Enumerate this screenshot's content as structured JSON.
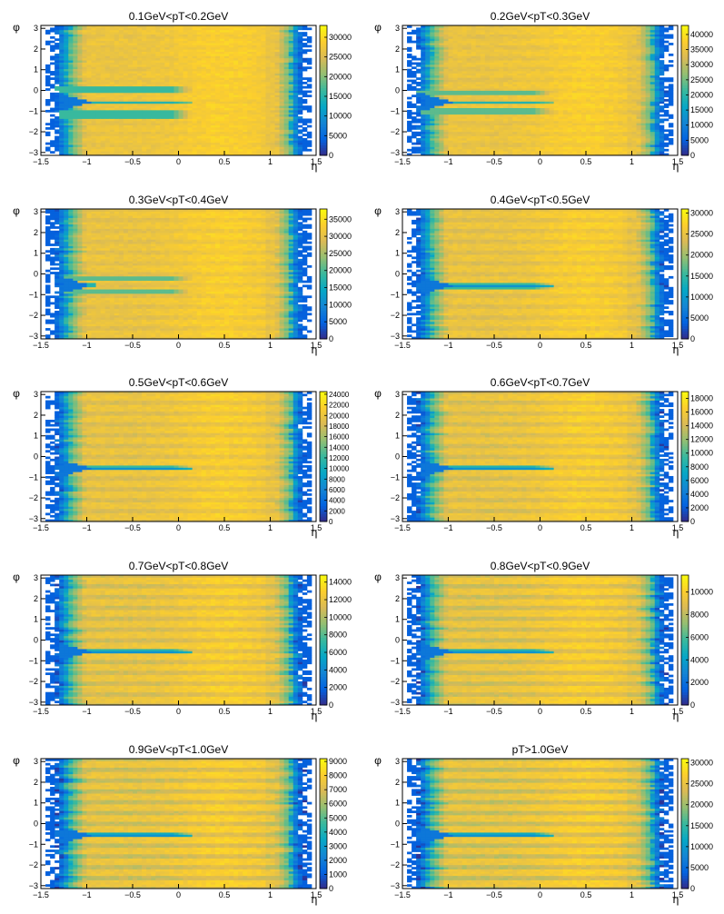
{
  "figure": {
    "colors": {
      "background": "#ffffff",
      "palette": [
        "#352a87",
        "#0363e1",
        "#1485d4",
        "#06a7c6",
        "#38b99e",
        "#92bf73",
        "#d9ba56",
        "#fcce2e",
        "#f9fb0e"
      ],
      "empty": "#ffffff"
    }
  },
  "chart_data": [
    {
      "type": "heatmap",
      "title": "0.1GeV<pT<0.2GeV",
      "xlabel": "η",
      "ylabel": "φ",
      "xlim": [
        -1.5,
        1.5
      ],
      "ylim": [
        -3.14,
        3.14
      ],
      "x_ticks": [
        "−1.5",
        "−1",
        "−0.5",
        "0",
        "0.5",
        "1",
        "1.5"
      ],
      "y_ticks": [
        "−3",
        "−2",
        "−1",
        "0",
        "1",
        "2",
        "3"
      ],
      "z_ticks": [
        "0",
        "5000",
        "10000",
        "15000",
        "20000",
        "25000",
        "30000"
      ],
      "zmax": 33000,
      "features": {
        "stripes": 0.04,
        "band_phi": [
          -1.15,
          0.05
        ],
        "band_eta_max": 0.05,
        "band_width": 0.32,
        "band_level": 0.5,
        "line_level": 0.45
      }
    },
    {
      "type": "heatmap",
      "title": "0.2GeV<pT<0.3GeV",
      "xlabel": "η",
      "ylabel": "φ",
      "xlim": [
        -1.5,
        1.5
      ],
      "ylim": [
        -3.14,
        3.14
      ],
      "x_ticks": [
        "−1.5",
        "−1",
        "−0.5",
        "0",
        "0.5",
        "1",
        "1.5"
      ],
      "y_ticks": [
        "−3",
        "−2",
        "−1",
        "0",
        "1",
        "2",
        "3"
      ],
      "z_ticks": [
        "0",
        "5000",
        "10000",
        "15000",
        "20000",
        "25000",
        "30000",
        "35000",
        "40000"
      ],
      "zmax": 43000,
      "features": {
        "stripes": 0.06,
        "band_phi": [
          -1.0,
          -0.1
        ],
        "band_eta_max": 0.05,
        "band_width": 0.25,
        "band_level": 0.55,
        "line_level": 0.45
      }
    },
    {
      "type": "heatmap",
      "title": "0.3GeV<pT<0.4GeV",
      "xlabel": "η",
      "ylabel": "φ",
      "xlim": [
        -1.5,
        1.5
      ],
      "ylim": [
        -3.14,
        3.14
      ],
      "x_ticks": [
        "−1.5",
        "−1",
        "−0.5",
        "0",
        "0.5",
        "1",
        "1.5"
      ],
      "y_ticks": [
        "−3",
        "−2",
        "−1",
        "0",
        "1",
        "2",
        "3"
      ],
      "z_ticks": [
        "0",
        "5000",
        "10000",
        "15000",
        "20000",
        "25000",
        "30000",
        "35000"
      ],
      "zmax": 38000,
      "features": {
        "stripes": 0.08,
        "band_phi": [
          -0.85,
          -0.2
        ],
        "band_eta_max": 0.05,
        "band_width": 0.22,
        "band_level": 0.55,
        "line_level": 0.45
      }
    },
    {
      "type": "heatmap",
      "title": "0.4GeV<pT<0.5GeV",
      "xlabel": "η",
      "ylabel": "φ",
      "xlim": [
        -1.5,
        1.5
      ],
      "ylim": [
        -3.14,
        3.14
      ],
      "x_ticks": [
        "−1.5",
        "−1",
        "−0.5",
        "0",
        "0.5",
        "1",
        "1.5"
      ],
      "y_ticks": [
        "−3",
        "−2",
        "−1",
        "0",
        "1",
        "2",
        "3"
      ],
      "z_ticks": [
        "0",
        "5000",
        "10000",
        "15000",
        "20000",
        "25000",
        "30000"
      ],
      "zmax": 31000,
      "features": {
        "stripes": 0.1,
        "band_phi": [
          -0.55,
          -0.55
        ],
        "band_eta_max": 0.05,
        "band_width": 0.32,
        "band_level": 0.5,
        "line_level": 0.3
      }
    },
    {
      "type": "heatmap",
      "title": "0.5GeV<pT<0.6GeV",
      "xlabel": "η",
      "ylabel": "φ",
      "xlim": [
        -1.5,
        1.5
      ],
      "ylim": [
        -3.14,
        3.14
      ],
      "x_ticks": [
        "−1.5",
        "−1",
        "−0.5",
        "0",
        "0.5",
        "1",
        "1.5"
      ],
      "y_ticks": [
        "−3",
        "−2",
        "−1",
        "0",
        "1",
        "2",
        "3"
      ],
      "z_ticks": [
        "0",
        "2000",
        "4000",
        "6000",
        "8000",
        "10000",
        "12000",
        "14000",
        "16000",
        "18000",
        "20000",
        "22000",
        "24000"
      ],
      "zmax": 24500,
      "features": {
        "stripes": 0.12,
        "band_phi": [
          -0.55,
          -0.55
        ],
        "band_eta_max": 0.05,
        "band_width": 0.26,
        "band_level": 0.5,
        "line_level": 0.3
      }
    },
    {
      "type": "heatmap",
      "title": "0.6GeV<pT<0.7GeV",
      "xlabel": "η",
      "ylabel": "φ",
      "xlim": [
        -1.5,
        1.5
      ],
      "ylim": [
        -3.14,
        3.14
      ],
      "x_ticks": [
        "−1.5",
        "−1",
        "−0.5",
        "0",
        "0.5",
        "1",
        "1.5"
      ],
      "y_ticks": [
        "−3",
        "−2",
        "−1",
        "0",
        "1",
        "2",
        "3"
      ],
      "z_ticks": [
        "0",
        "2000",
        "4000",
        "6000",
        "8000",
        "10000",
        "12000",
        "14000",
        "16000",
        "18000"
      ],
      "zmax": 19000,
      "features": {
        "stripes": 0.14,
        "band_phi": [
          -0.55,
          -0.55
        ],
        "band_eta_max": 0.05,
        "band_width": 0.2,
        "band_level": 0.45,
        "line_level": 0.3
      }
    },
    {
      "type": "heatmap",
      "title": "0.7GeV<pT<0.8GeV",
      "xlabel": "η",
      "ylabel": "φ",
      "xlim": [
        -1.5,
        1.5
      ],
      "ylim": [
        -3.14,
        3.14
      ],
      "x_ticks": [
        "−1.5",
        "−1",
        "−0.5",
        "0",
        "0.5",
        "1",
        "1.5"
      ],
      "y_ticks": [
        "−3",
        "−2",
        "−1",
        "0",
        "1",
        "2",
        "3"
      ],
      "z_ticks": [
        "0",
        "2000",
        "4000",
        "6000",
        "8000",
        "10000",
        "12000",
        "14000"
      ],
      "zmax": 14800,
      "features": {
        "stripes": 0.16,
        "band_phi": [
          -0.55,
          -0.55
        ],
        "band_eta_max": 0.05,
        "band_width": 0.18,
        "band_level": 0.45,
        "line_level": 0.3
      }
    },
    {
      "type": "heatmap",
      "title": "0.8GeV<pT<0.9GeV",
      "xlabel": "η",
      "ylabel": "φ",
      "xlim": [
        -1.5,
        1.5
      ],
      "ylim": [
        -3.14,
        3.14
      ],
      "x_ticks": [
        "−1.5",
        "−1",
        "−0.5",
        "0",
        "0.5",
        "1",
        "1.5"
      ],
      "y_ticks": [
        "−3",
        "−2",
        "−1",
        "0",
        "1",
        "2",
        "3"
      ],
      "z_ticks": [
        "0",
        "2000",
        "4000",
        "6000",
        "8000",
        "10000"
      ],
      "zmax": 11500,
      "features": {
        "stripes": 0.18,
        "band_phi": [
          -0.55,
          -0.55
        ],
        "band_eta_max": 0.05,
        "band_width": 0.17,
        "band_level": 0.45,
        "line_level": 0.3
      }
    },
    {
      "type": "heatmap",
      "title": "0.9GeV<pT<1.0GeV",
      "xlabel": "η",
      "ylabel": "φ",
      "xlim": [
        -1.5,
        1.5
      ],
      "ylim": [
        -3.14,
        3.14
      ],
      "x_ticks": [
        "−1.5",
        "−1",
        "−0.5",
        "0",
        "0.5",
        "1",
        "1.5"
      ],
      "y_ticks": [
        "−3",
        "−2",
        "−1",
        "0",
        "1",
        "2",
        "3"
      ],
      "z_ticks": [
        "0",
        "1000",
        "2000",
        "3000",
        "4000",
        "5000",
        "6000",
        "7000",
        "8000",
        "9000"
      ],
      "zmax": 9200,
      "features": {
        "stripes": 0.2,
        "band_phi": [
          -0.55,
          -0.55
        ],
        "band_eta_max": 0.05,
        "band_width": 0.17,
        "band_level": 0.4,
        "line_level": 0.3
      }
    },
    {
      "type": "heatmap",
      "title": "pT>1.0GeV",
      "xlabel": "η",
      "ylabel": "φ",
      "xlim": [
        -1.5,
        1.5
      ],
      "ylim": [
        -3.14,
        3.14
      ],
      "x_ticks": [
        "−1.5",
        "−1",
        "−0.5",
        "0",
        "0.5",
        "1",
        "1.5"
      ],
      "y_ticks": [
        "−3",
        "−2",
        "−1",
        "0",
        "1",
        "2",
        "3"
      ],
      "z_ticks": [
        "0",
        "5000",
        "10000",
        "15000",
        "20000",
        "25000",
        "30000"
      ],
      "zmax": 31000,
      "features": {
        "stripes": 0.22,
        "band_phi": [
          -0.55,
          -0.55
        ],
        "band_eta_max": 0.05,
        "band_width": 0.17,
        "band_level": 0.4,
        "line_level": 0.3
      }
    }
  ]
}
